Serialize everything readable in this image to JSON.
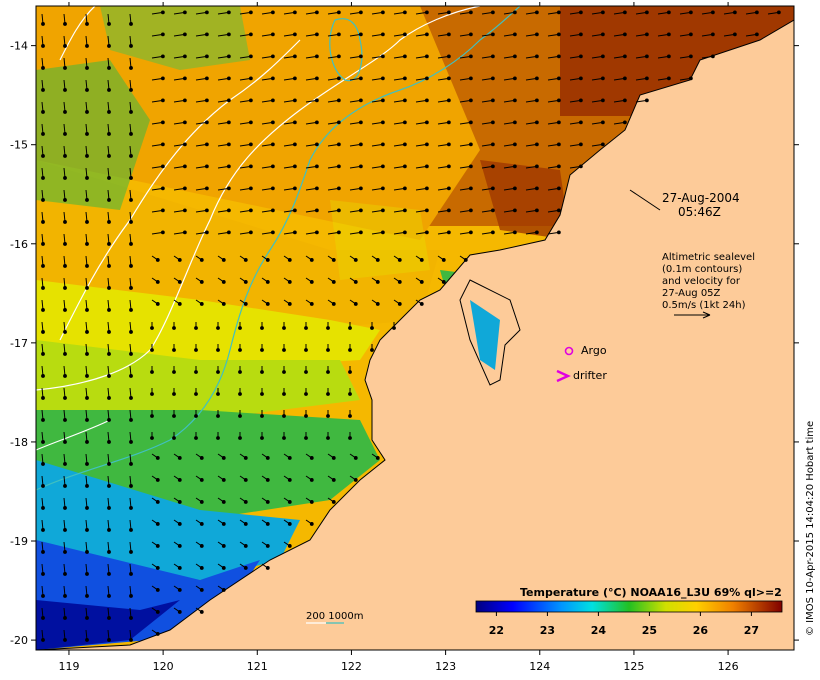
{
  "map": {
    "x_ticks": [
      "119",
      "120",
      "121",
      "122",
      "123",
      "124",
      "125",
      "126"
    ],
    "y_ticks": [
      "-14",
      "-15",
      "-16",
      "-17",
      "-18",
      "-19",
      "-20"
    ],
    "lon_range": [
      118.65,
      126.7
    ],
    "lat_range": [
      -13.6,
      -20.1
    ]
  },
  "annotations": {
    "date": "27-Aug-2004",
    "time": "05:46Z",
    "info_lines": [
      "Altimetric sealevel",
      "(0.1m contours)",
      "and velocity for",
      "27-Aug 05Z",
      "0.5m/s (1kt 24h)"
    ],
    "argo_label": "Argo",
    "drifter_label": "drifter",
    "depth_label": "200  1000m"
  },
  "colorbar": {
    "title": "Temperature (°C) NOAA16_L3U 69% ql>=2",
    "tick_labels": [
      "22",
      "23",
      "24",
      "25",
      "26",
      "27"
    ],
    "range": [
      21.6,
      27.6
    ]
  },
  "credit": "© IMOS 10-Apr-2015 14:04:20 Hobart time",
  "colors": {
    "land": "#fdcb99",
    "argo": "#e000e0",
    "drifter": "#e000e0",
    "isobath_200": "#ffffff",
    "isobath_1000": "#40c0c0"
  }
}
